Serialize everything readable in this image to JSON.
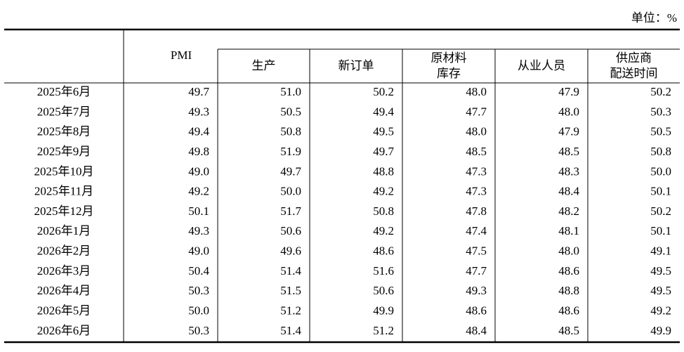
{
  "unit": "单位：%",
  "table": {
    "header": [
      [
        "PMI"
      ],
      [
        "生产"
      ],
      [
        "新订单"
      ],
      [
        "原材料",
        "库存"
      ],
      [
        "从业人员"
      ],
      [
        "供应商",
        "配送时间"
      ]
    ],
    "rows": [
      [
        "2025年6月",
        "49.7",
        "51.0",
        "50.2",
        "48.0",
        "47.9",
        "50.2"
      ],
      [
        "2025年7月",
        "49.3",
        "50.5",
        "49.4",
        "47.7",
        "48.0",
        "50.3"
      ],
      [
        "2025年8月",
        "49.4",
        "50.8",
        "49.5",
        "48.0",
        "47.9",
        "50.5"
      ],
      [
        "2025年9月",
        "49.8",
        "51.9",
        "49.7",
        "48.5",
        "48.5",
        "50.8"
      ],
      [
        "2025年10月",
        "49.0",
        "49.7",
        "48.8",
        "47.3",
        "48.3",
        "50.0"
      ],
      [
        "2025年11月",
        "49.2",
        "50.0",
        "49.2",
        "47.3",
        "48.4",
        "50.1"
      ],
      [
        "2025年12月",
        "50.1",
        "51.7",
        "50.8",
        "47.8",
        "48.2",
        "50.2"
      ],
      [
        "2026年1月",
        "49.3",
        "50.6",
        "49.2",
        "47.4",
        "48.1",
        "50.1"
      ],
      [
        "2026年2月",
        "49.0",
        "49.6",
        "48.6",
        "47.5",
        "48.0",
        "49.1"
      ],
      [
        "2026年3月",
        "50.4",
        "51.4",
        "51.6",
        "47.7",
        "48.6",
        "49.5"
      ],
      [
        "2026年4月",
        "50.3",
        "51.5",
        "50.6",
        "49.3",
        "48.8",
        "49.5"
      ],
      [
        "2026年5月",
        "50.0",
        "51.2",
        "49.9",
        "48.6",
        "48.6",
        "49.2"
      ],
      [
        "2026年6月",
        "50.3",
        "51.4",
        "51.2",
        "48.4",
        "48.5",
        "49.9"
      ]
    ]
  }
}
